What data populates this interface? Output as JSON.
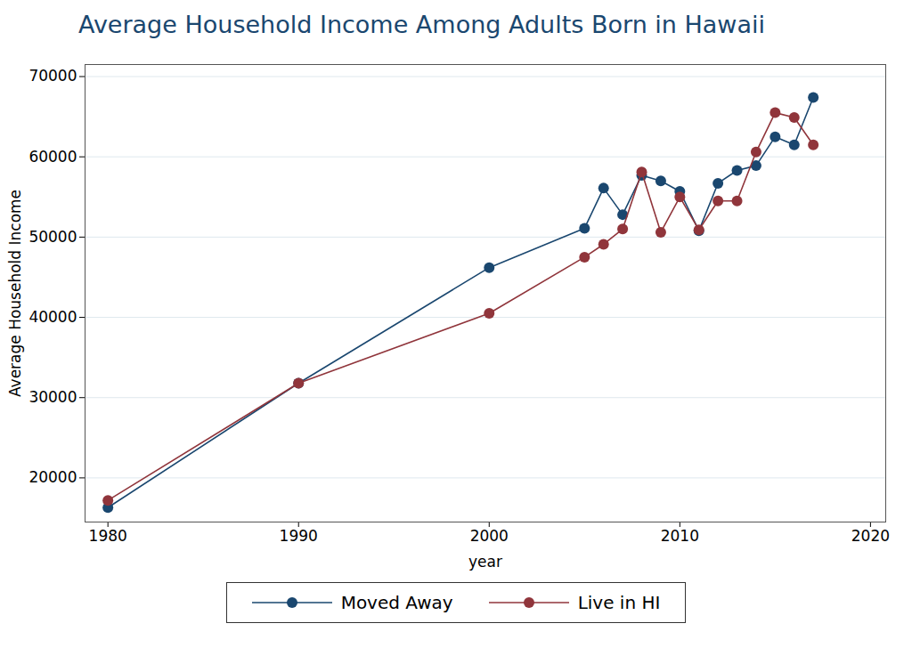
{
  "chart_data": {
    "type": "line",
    "title": "Average Household Income Among Adults Born in Hawaii",
    "x_label": "year",
    "y_label": "Average Household Income",
    "x": [
      1980,
      1990,
      2000,
      2005,
      2006,
      2007,
      2008,
      2009,
      2010,
      2011,
      2012,
      2013,
      2014,
      2015,
      2016,
      2017
    ],
    "series": [
      {
        "name": "Moved Away",
        "color": "#1a476f",
        "marker": "circle",
        "values": [
          16300,
          31800,
          46200,
          51100,
          56100,
          52800,
          57700,
          57000,
          55700,
          50800,
          56700,
          58300,
          58900,
          62500,
          61500,
          67400
        ]
      },
      {
        "name": "Live in HI",
        "color": "#90353b",
        "marker": "circle",
        "values": [
          17200,
          31800,
          40500,
          47500,
          49100,
          51000,
          58100,
          50600,
          55000,
          50900,
          54500,
          54500,
          60600,
          65500,
          64900,
          61500
        ]
      }
    ],
    "xlim": [
      1978.8,
      2020.8
    ],
    "xticks": [
      1980,
      1990,
      2000,
      2010,
      2020
    ],
    "ylim": [
      14500,
      71500
    ],
    "yticks": [
      20000,
      30000,
      40000,
      50000,
      60000,
      70000
    ],
    "grid": true,
    "legend": "bottom"
  }
}
